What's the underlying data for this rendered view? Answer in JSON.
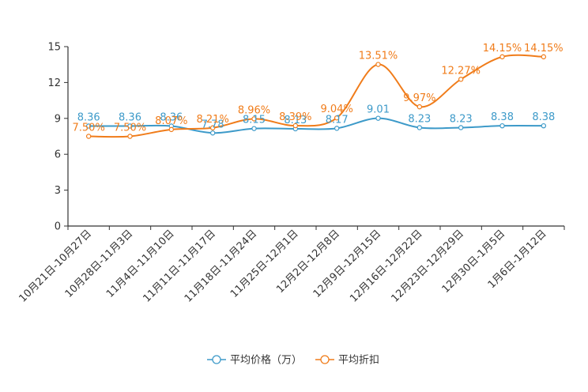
{
  "chart_data": {
    "type": "line",
    "title": "",
    "xlabel": "",
    "ylabel": "",
    "ylim": [
      0,
      15
    ],
    "yticks": [
      0,
      3,
      6,
      9,
      12,
      15
    ],
    "grid": false,
    "legend_position": "bottom-center",
    "categories": [
      "10月21日-10月27日",
      "10月28日-11月3日",
      "11月4日-11月10日",
      "11月11日-11月17日",
      "11月18日-11月24日",
      "11月25日-12月1日",
      "12月2日-12月8日",
      "12月9日-12月15日",
      "12月16日-12月22日",
      "12月23日-12月29日",
      "12月30日-1月5日",
      "1月6日-1月12日"
    ],
    "series": [
      {
        "name": "平均价格（万）",
        "color": "#3d9ac9",
        "values": [
          8.36,
          8.36,
          8.36,
          7.78,
          8.15,
          8.13,
          8.17,
          9.01,
          8.23,
          8.23,
          8.38,
          8.38
        ],
        "labels": [
          "8.36",
          "8.36",
          "8.36",
          "7.78",
          "8.15",
          "8.13",
          "8.17",
          "9.01",
          "8.23",
          "8.23",
          "8.38",
          "8.38"
        ]
      },
      {
        "name": "平均折扣",
        "color": "#f07c1a",
        "values": [
          7.5,
          7.5,
          8.07,
          8.21,
          8.96,
          8.39,
          9.04,
          13.51,
          9.97,
          12.27,
          14.15,
          14.15
        ],
        "labels": [
          "7.50%",
          "7.50%",
          "8.07%",
          "8.21%",
          "8.96%",
          "8.39%",
          "9.04%",
          "13.51%",
          "9.97%",
          "12.27%",
          "14.15%",
          "14.15%"
        ]
      }
    ]
  }
}
